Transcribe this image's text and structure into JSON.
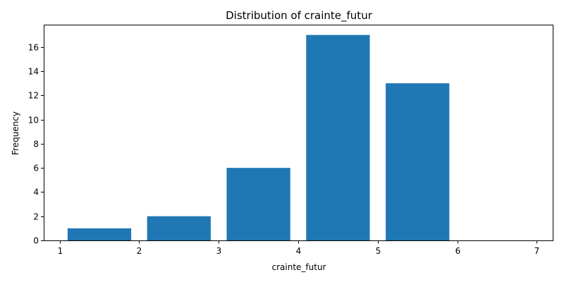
{
  "chart_data": {
    "type": "bar",
    "title": "Distribution of crainte_futur",
    "xlabel": "crainte_futur",
    "ylabel": "Frequency",
    "bars": [
      {
        "x_start": 1.1,
        "x_end": 1.9,
        "value": 1
      },
      {
        "x_start": 2.1,
        "x_end": 2.9,
        "value": 2
      },
      {
        "x_start": 3.1,
        "x_end": 3.9,
        "value": 6
      },
      {
        "x_start": 4.1,
        "x_end": 4.9,
        "value": 17
      },
      {
        "x_start": 5.1,
        "x_end": 5.9,
        "value": 13
      },
      {
        "x_start": 6.1,
        "x_end": 6.9,
        "value": 0
      }
    ],
    "xlim": [
      0.8,
      7.2
    ],
    "ylim": [
      0,
      17.85
    ],
    "xticks": [
      "1",
      "2",
      "3",
      "4",
      "5",
      "6",
      "7"
    ],
    "yticks": [
      "0",
      "2",
      "4",
      "6",
      "8",
      "10",
      "12",
      "14",
      "16"
    ],
    "bar_color": "#1f77b4",
    "grid": false,
    "legend": "none"
  }
}
